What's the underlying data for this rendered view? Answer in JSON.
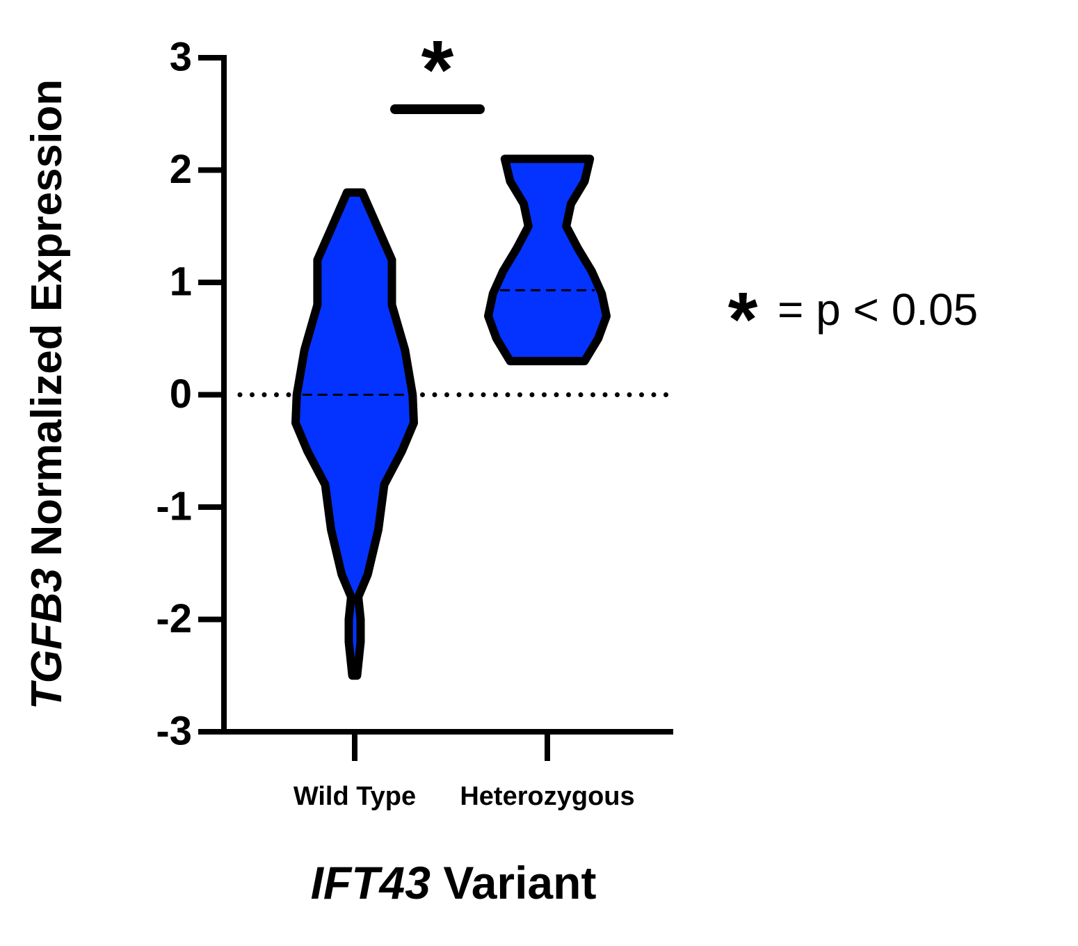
{
  "chart_data": {
    "type": "violin",
    "ylabel_italic": "TGFB3",
    "ylabel": "Normalized Expression",
    "xlabel_italic": "IFT43",
    "xlabel": "Variant",
    "categories": [
      "Wild Type",
      "Heterozygous"
    ],
    "color": "#0433ff",
    "ylim": [
      -3,
      3
    ],
    "yticks": [
      -3,
      -2,
      -1,
      0,
      1,
      2,
      3
    ],
    "reference_line": 0,
    "violins": [
      {
        "median": 0,
        "density_y": [
          1.8,
          1.5,
          1.2,
          0.8,
          0.4,
          0,
          -0.25,
          -0.5,
          -0.8,
          -1.2,
          -1.6,
          -1.8,
          -2.0,
          -2.2,
          -2.5
        ],
        "density": [
          0.13,
          0.38,
          0.63,
          0.63,
          0.85,
          0.98,
          1.0,
          0.8,
          0.5,
          0.4,
          0.22,
          0.06,
          0.1,
          0.1,
          0.04
        ]
      },
      {
        "median": 0.93,
        "density_y": [
          2.1,
          1.9,
          1.7,
          1.5,
          1.3,
          1.1,
          0.9,
          0.7,
          0.5,
          0.3
        ],
        "density": [
          0.72,
          0.63,
          0.4,
          0.32,
          0.52,
          0.75,
          0.92,
          1.0,
          0.86,
          0.63
        ]
      }
    ],
    "significance_marker": "*",
    "significance_note": "= p < 0.05"
  }
}
